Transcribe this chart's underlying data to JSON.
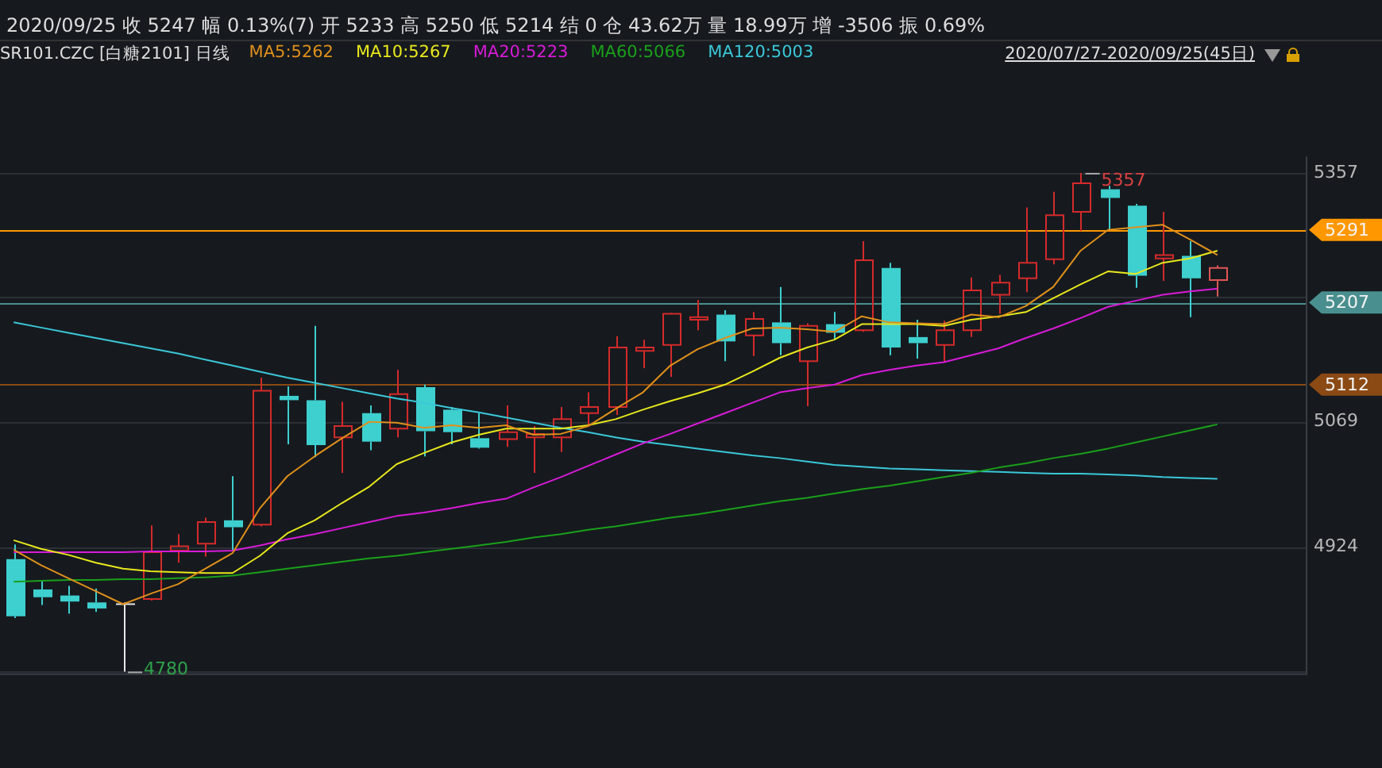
{
  "chart_data": {
    "type": "candlestick",
    "title": "2020/09/25 收 5247 幅 0.13%(7) 开 5233 高 5250 低 5214 结 0 仓 43.62万 量 18.99万 增 -3506 振 0.69%",
    "subtitle": "SR101.CZC [白糖2101] 日线",
    "categories": [
      null,
      null,
      null,
      null,
      null,
      null,
      null,
      null,
      null,
      null,
      null,
      null,
      null,
      null,
      null,
      null,
      null,
      null,
      null,
      null,
      null,
      null,
      null,
      null,
      null,
      null,
      null,
      null,
      null,
      null,
      null,
      null,
      null,
      null,
      null,
      null,
      null,
      null,
      null,
      null,
      null,
      null,
      null,
      null,
      null
    ],
    "ohlc": [
      [
        4910,
        4927,
        4842,
        4844
      ],
      [
        4875,
        4886,
        4857,
        4866
      ],
      [
        4868,
        4879,
        4847,
        4861
      ],
      [
        4860,
        4876,
        4849,
        4853
      ],
      [
        4858,
        4860,
        4780,
        4858
      ],
      [
        4864,
        4949,
        4862,
        4918
      ],
      [
        4920,
        4939,
        4906,
        4925
      ],
      [
        4928,
        4958,
        4913,
        4953
      ],
      [
        4955,
        5006,
        4920,
        4947
      ],
      [
        4950,
        5120,
        4948,
        5105
      ],
      [
        5099,
        5110,
        5043,
        5094
      ],
      [
        5094,
        5180,
        5028,
        5042
      ],
      [
        5051,
        5092,
        5010,
        5064
      ],
      [
        5079,
        5088,
        5036,
        5046
      ],
      [
        5061,
        5129,
        5051,
        5101
      ],
      [
        5109,
        5112,
        5029,
        5058
      ],
      [
        5083,
        5086,
        5043,
        5057
      ],
      [
        5050,
        5079,
        5038,
        5039
      ],
      [
        5049,
        5088,
        5040,
        5057
      ],
      [
        5051,
        5064,
        5010,
        5055
      ],
      [
        5051,
        5086,
        5034,
        5072
      ],
      [
        5079,
        5103,
        5064,
        5086
      ],
      [
        5086,
        5168,
        5077,
        5155
      ],
      [
        5151,
        5164,
        5131,
        5155
      ],
      [
        5158,
        5195,
        5121,
        5194
      ],
      [
        5187,
        5210,
        5175,
        5190
      ],
      [
        5193,
        5198,
        5139,
        5162
      ],
      [
        5169,
        5196,
        5145,
        5188
      ],
      [
        5184,
        5225,
        5146,
        5160
      ],
      [
        5139,
        5183,
        5087,
        5180
      ],
      [
        5182,
        5196,
        5164,
        5172
      ],
      [
        5175,
        5278,
        5173,
        5256
      ],
      [
        5247,
        5253,
        5146,
        5155
      ],
      [
        5167,
        5187,
        5142,
        5160
      ],
      [
        5158,
        5186,
        5138,
        5175
      ],
      [
        5175,
        5236,
        5167,
        5221
      ],
      [
        5216,
        5239,
        5194,
        5230
      ],
      [
        5235,
        5317,
        5219,
        5253
      ],
      [
        5257,
        5335,
        5251,
        5308
      ],
      [
        5312,
        5357,
        5290,
        5345
      ],
      [
        5338,
        5342,
        5291,
        5328
      ],
      [
        5319,
        5321,
        5224,
        5238
      ],
      [
        5258,
        5312,
        5232,
        5262
      ],
      [
        5261,
        5278,
        5190,
        5235
      ],
      [
        5233,
        5250,
        5214,
        5247
      ]
    ],
    "colors": [
      "#3ecfcf",
      "#3ecfcf",
      "#3ecfcf",
      "#3ecfcf",
      "#e6e6e6",
      "#d42a2a",
      "#d42a2a",
      "#d42a2a",
      "#3ecfcf",
      "#d42a2a",
      "#3ecfcf",
      "#3ecfcf",
      "#d42a2a",
      "#3ecfcf",
      "#d42a2a",
      "#3ecfcf",
      "#3ecfcf",
      "#3ecfcf",
      "#d42a2a",
      "#d42a2a",
      "#d42a2a",
      "#d42a2a",
      "#d42a2a",
      "#d42a2a",
      "#d42a2a",
      "#d42a2a",
      "#3ecfcf",
      "#d42a2a",
      "#3ecfcf",
      "#d42a2a",
      "#3ecfcf",
      "#d42a2a",
      "#3ecfcf",
      "#3ecfcf",
      "#d42a2a",
      "#d42a2a",
      "#d42a2a",
      "#d42a2a",
      "#d42a2a",
      "#d42a2a",
      "#3ecfcf",
      "#3ecfcf",
      "#d42a2a",
      "#3ecfcf",
      "#e05555"
    ],
    "series": [
      {
        "type": "line",
        "name": "MA5:5262",
        "color": "#e0901a",
        "values": [
          4921,
          4903,
          4888,
          4873,
          4858,
          4870,
          4881,
          4899,
          4917,
          4969,
          5006,
          5029,
          5050,
          5069,
          5068,
          5062,
          5065,
          5062,
          5065,
          5054,
          5055,
          5064,
          5084,
          5103,
          5134,
          5153,
          5166,
          5177,
          5178,
          5176,
          5173,
          5191,
          5184,
          5183,
          5182,
          5193,
          5190,
          5203,
          5225,
          5267,
          5291,
          5294,
          5297,
          5280,
          5262
        ]
      },
      {
        "type": "line",
        "name": "MA10:5267",
        "color": "#e8e81c",
        "values": [
          4932,
          4922,
          4915,
          4906,
          4899,
          4896,
          4895,
          4894,
          4894,
          4914,
          4940,
          4955,
          4975,
          4994,
          5020,
          5033,
          5045,
          5054,
          5061,
          5061,
          5061,
          5065,
          5072,
          5083,
          5093,
          5102,
          5112,
          5127,
          5143,
          5155,
          5164,
          5182,
          5182,
          5182,
          5180,
          5187,
          5191,
          5196,
          5212,
          5228,
          5243,
          5240,
          5253,
          5258,
          5267
        ]
      },
      {
        "type": "line",
        "name": "MA20:5223",
        "color": "#d81ad8",
        "values": [
          4918,
          4918,
          4918,
          4918,
          4918,
          4919,
          4919,
          4919,
          4920,
          4926,
          4933,
          4939,
          4946,
          4953,
          4960,
          4964,
          4969,
          4975,
          4980,
          4993,
          5005,
          5018,
          5031,
          5044,
          5055,
          5067,
          5079,
          5091,
          5103,
          5108,
          5112,
          5123,
          5129,
          5134,
          5138,
          5146,
          5154,
          5166,
          5177,
          5189,
          5202,
          5209,
          5216,
          5220,
          5223
        ]
      },
      {
        "type": "line",
        "name": "MA60:5066",
        "color": "#1aa01a",
        "values": [
          4884,
          4885,
          4886,
          4886,
          4887,
          4887,
          4888,
          4889,
          4891,
          4895,
          4899,
          4903,
          4907,
          4911,
          4914,
          4918,
          4922,
          4926,
          4930,
          4935,
          4939,
          4944,
          4948,
          4953,
          4958,
          4962,
          4967,
          4972,
          4977,
          4981,
          4986,
          4991,
          4995,
          5000,
          5005,
          5010,
          5016,
          5021,
          5027,
          5032,
          5038,
          5045,
          5052,
          5059,
          5066
        ]
      },
      {
        "type": "line",
        "name": "MA120:5003",
        "color": "#3ac8d8",
        "values": [
          5184,
          5178,
          5172,
          5166,
          5160,
          5154,
          5148,
          5141,
          5134,
          5127,
          5120,
          5114,
          5108,
          5102,
          5096,
          5091,
          5085,
          5080,
          5074,
          5068,
          5062,
          5057,
          5051,
          5046,
          5042,
          5038,
          5034,
          5030,
          5027,
          5023,
          5019,
          5017,
          5015,
          5014,
          5013,
          5012,
          5011,
          5010,
          5009,
          5009,
          5008,
          5007,
          5005,
          5004,
          5003
        ]
      }
    ],
    "ylim": [
      4776,
      5376
    ],
    "yticks": [
      5357,
      {
        "value": 5213,
        "label": null
      },
      5069,
      4924,
      {
        "value": 4780,
        "label": null
      }
    ],
    "tick_labels": "y",
    "grid": "y",
    "legend": "top",
    "ref_lines": [
      {
        "axis": "y",
        "value": 5291,
        "label": "5291",
        "color": "#ff9800"
      },
      {
        "axis": "y",
        "value": 5207,
        "label": "5207",
        "color": "#4a8f8f"
      },
      {
        "axis": "y",
        "value": 5112,
        "label": "5112",
        "color": "#8b4a14"
      }
    ],
    "annotations": [
      "5357",
      "4780",
      "2020/07/27-2020/09/25(45日)"
    ]
  }
}
